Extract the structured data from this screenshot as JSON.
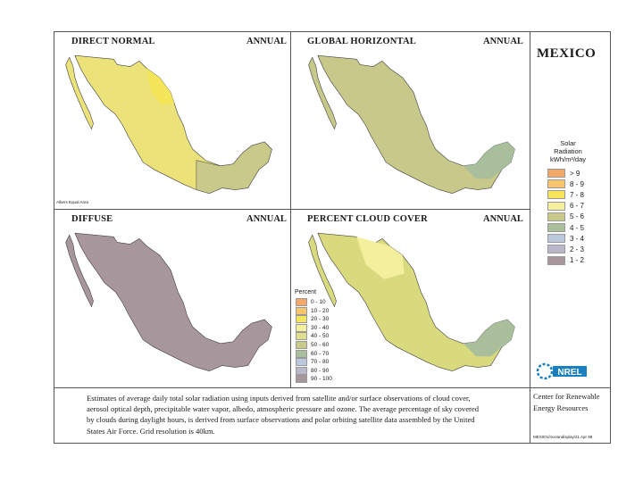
{
  "country": "MEXICO",
  "panels": [
    {
      "title": "DIRECT NORMAL",
      "period": "ANNUAL",
      "fill": "#ece27a"
    },
    {
      "title": "GLOBAL HORIZONTAL",
      "period": "ANNUAL",
      "fill": "#c8c88a"
    },
    {
      "title": "DIFFUSE",
      "period": "ANNUAL",
      "fill": "#a89a9e"
    },
    {
      "title": "PERCENT CLOUD COVER",
      "period": "ANNUAL",
      "fill": "#d9d97e"
    }
  ],
  "projection_note": "Albers Equal Area",
  "solar_legend": {
    "title_line1": "Solar",
    "title_line2": "Radiation",
    "title_line3": "kWh/m²/day",
    "items": [
      {
        "label": "> 9",
        "color": "#f3a86a"
      },
      {
        "label": "8 - 9",
        "color": "#f6c56c"
      },
      {
        "label": "7 - 8",
        "color": "#f4e55a"
      },
      {
        "label": "6 - 7",
        "color": "#f3ef9c"
      },
      {
        "label": "5 - 6",
        "color": "#c9c98a"
      },
      {
        "label": "4 - 5",
        "color": "#a9bf9c"
      },
      {
        "label": "3 - 4",
        "color": "#bcc9dd"
      },
      {
        "label": "2 - 3",
        "color": "#b9b7c9"
      },
      {
        "label": "1 - 2",
        "color": "#a8969d"
      }
    ]
  },
  "cloud_legend": {
    "title": "Percent",
    "items": [
      {
        "label": "0 - 10",
        "color": "#f3a86a"
      },
      {
        "label": "10 - 20",
        "color": "#f6c56c"
      },
      {
        "label": "20 - 30",
        "color": "#f4e55a"
      },
      {
        "label": "30 - 40",
        "color": "#f3ef9c"
      },
      {
        "label": "40 - 50",
        "color": "#dede8e"
      },
      {
        "label": "50 - 60",
        "color": "#c9c98a"
      },
      {
        "label": "60 - 70",
        "color": "#a9bf9c"
      },
      {
        "label": "70 - 80",
        "color": "#bcc9dd"
      },
      {
        "label": "80 - 90",
        "color": "#b9b7c9"
      },
      {
        "label": "90 - 100",
        "color": "#a8969d"
      }
    ]
  },
  "caption": "Estimates of average daily total solar radiation using inputs derived from satellite and/or surface observations of cloud cover, aerosol optical depth, precipitable water vapor, albedo, atmospheric pressure and ozone. The average percentage of sky covered by clouds during daylight hours, is derived from surface observations and polar orbiting satellite data assembled by the United States Air Force. Grid resolution is 40km.",
  "logo_text": "NREL",
  "org_line1": "Center for Renewable",
  "org_line2": "Energy Resources",
  "footer_id": "MEX001/mxsandisplay/21 Apr 98"
}
